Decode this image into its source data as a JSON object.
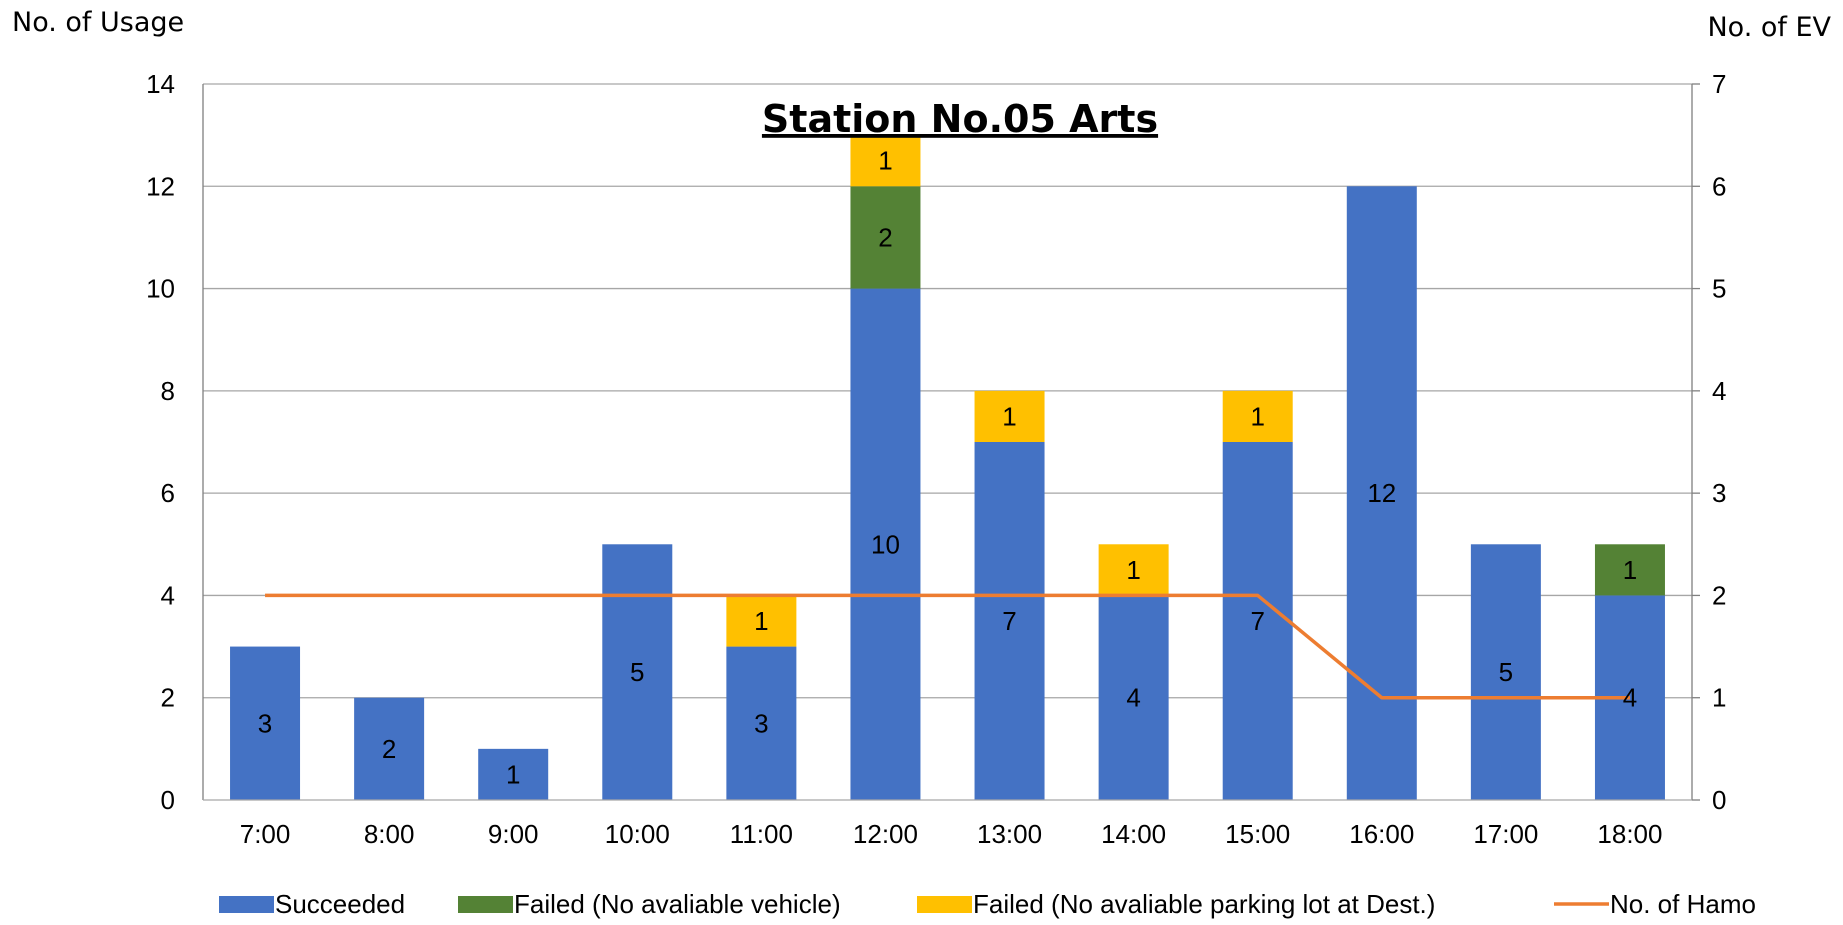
{
  "chart_data": {
    "type": "bar",
    "stacked": true,
    "title": "Station No.05 Arts",
    "ylabel": "No. of Usage",
    "y2label": "No. of EV",
    "ylim": [
      0,
      14
    ],
    "y2lim": [
      0,
      7
    ],
    "yticks": [
      "0",
      "2",
      "4",
      "6",
      "8",
      "10",
      "12",
      "14"
    ],
    "y2ticks": [
      "0",
      "1",
      "2",
      "3",
      "4",
      "5",
      "6",
      "7"
    ],
    "grid": true,
    "legend_position": "bottom",
    "categories": [
      "7:00",
      "8:00",
      "9:00",
      "10:00",
      "11:00",
      "12:00",
      "13:00",
      "14:00",
      "15:00",
      "16:00",
      "17:00",
      "18:00"
    ],
    "series": [
      {
        "name": "Succeeded",
        "type": "bar",
        "axis": "left",
        "color": "#4472C4",
        "values": [
          3,
          2,
          1,
          5,
          3,
          10,
          7,
          4,
          7,
          12,
          5,
          4
        ]
      },
      {
        "name": "Failed (No avaliable vehicle)",
        "type": "bar",
        "axis": "left",
        "color": "#548235",
        "values": [
          0,
          0,
          0,
          0,
          0,
          2,
          0,
          0,
          0,
          0,
          0,
          1
        ]
      },
      {
        "name": "Failed (No avaliable parking lot at Dest.)",
        "type": "bar",
        "axis": "left",
        "color": "#FFC000",
        "values": [
          0,
          0,
          0,
          0,
          1,
          1,
          1,
          1,
          1,
          0,
          0,
          0
        ]
      },
      {
        "name": "No. of Hamo",
        "type": "line",
        "axis": "right",
        "color": "#ED7D31",
        "values": [
          2,
          2,
          2,
          2,
          2,
          2,
          2,
          2,
          2,
          1,
          1,
          1
        ]
      }
    ]
  }
}
